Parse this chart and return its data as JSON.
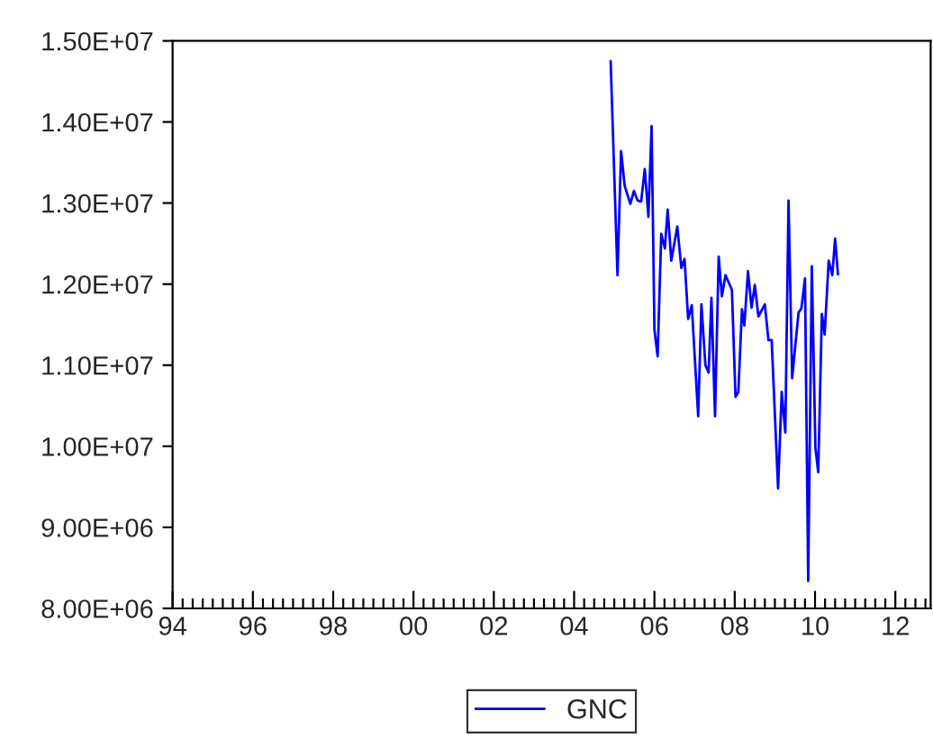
{
  "chart_data": {
    "type": "line",
    "x": [
      2004.91,
      2005.08,
      2005.17,
      2005.26,
      2005.4,
      2005.49,
      2005.58,
      2005.67,
      2005.76,
      2005.85,
      2005.93,
      2006.0,
      2006.08,
      2006.17,
      2006.26,
      2006.33,
      2006.42,
      2006.57,
      2006.67,
      2006.75,
      2006.84,
      2006.93,
      2007.09,
      2007.17,
      2007.27,
      2007.35,
      2007.42,
      2007.51,
      2007.6,
      2007.68,
      2007.77,
      2007.93,
      2008.02,
      2008.09,
      2008.18,
      2008.24,
      2008.33,
      2008.42,
      2008.5,
      2008.59,
      2008.75,
      2008.84,
      2008.92,
      2009.08,
      2009.17,
      2009.26,
      2009.34,
      2009.43,
      2009.59,
      2009.66,
      2009.75,
      2009.83,
      2009.92,
      2010.01,
      2010.08,
      2010.17,
      2010.24,
      2010.34,
      2010.43,
      2010.5,
      2010.57
    ],
    "series": [
      {
        "name": "GNC",
        "color": "#0000ff",
        "values": [
          14750000,
          12110000,
          13640000,
          13210000,
          12990000,
          13150000,
          13030000,
          13020000,
          13420000,
          12830000,
          13950000,
          11440000,
          11110000,
          12620000,
          12440000,
          12920000,
          12290000,
          12710000,
          12200000,
          12310000,
          11570000,
          11740000,
          10370000,
          11750000,
          11000000,
          10910000,
          11830000,
          10370000,
          12340000,
          11850000,
          12110000,
          11930000,
          10610000,
          10670000,
          11690000,
          11490000,
          12160000,
          11710000,
          11990000,
          11600000,
          11750000,
          11310000,
          11310000,
          9480000,
          10670000,
          10170000,
          13030000,
          10840000,
          11650000,
          11700000,
          12070000,
          8340000,
          12220000,
          9980000,
          9680000,
          11630000,
          11380000,
          12290000,
          12110000,
          12560000,
          12120000
        ]
      }
    ],
    "xlim": [
      1994,
      2012.88
    ],
    "xticks": [
      {
        "value": 1994,
        "label": "94"
      },
      {
        "value": 1994.25,
        "label": null
      },
      {
        "value": 1994.5,
        "label": null
      },
      {
        "value": 1994.75,
        "label": null
      },
      {
        "value": 1995,
        "label": null
      },
      {
        "value": 1995.25,
        "label": null
      },
      {
        "value": 1995.5,
        "label": null
      },
      {
        "value": 1995.75,
        "label": null
      },
      {
        "value": 1996,
        "label": "96"
      },
      {
        "value": 1996.25,
        "label": null
      },
      {
        "value": 1996.5,
        "label": null
      },
      {
        "value": 1996.75,
        "label": null
      },
      {
        "value": 1997,
        "label": null
      },
      {
        "value": 1997.25,
        "label": null
      },
      {
        "value": 1997.5,
        "label": null
      },
      {
        "value": 1997.75,
        "label": null
      },
      {
        "value": 1998,
        "label": "98"
      },
      {
        "value": 1998.25,
        "label": null
      },
      {
        "value": 1998.5,
        "label": null
      },
      {
        "value": 1998.75,
        "label": null
      },
      {
        "value": 1999,
        "label": null
      },
      {
        "value": 1999.25,
        "label": null
      },
      {
        "value": 1999.5,
        "label": null
      },
      {
        "value": 1999.75,
        "label": null
      },
      {
        "value": 2000,
        "label": "00"
      },
      {
        "value": 2000.25,
        "label": null
      },
      {
        "value": 2000.5,
        "label": null
      },
      {
        "value": 2000.75,
        "label": null
      },
      {
        "value": 2001,
        "label": null
      },
      {
        "value": 2001.25,
        "label": null
      },
      {
        "value": 2001.5,
        "label": null
      },
      {
        "value": 2001.75,
        "label": null
      },
      {
        "value": 2002,
        "label": "02"
      },
      {
        "value": 2002.25,
        "label": null
      },
      {
        "value": 2002.5,
        "label": null
      },
      {
        "value": 2002.75,
        "label": null
      },
      {
        "value": 2003,
        "label": null
      },
      {
        "value": 2003.25,
        "label": null
      },
      {
        "value": 2003.5,
        "label": null
      },
      {
        "value": 2003.75,
        "label": null
      },
      {
        "value": 2004,
        "label": "04"
      },
      {
        "value": 2004.25,
        "label": null
      },
      {
        "value": 2004.5,
        "label": null
      },
      {
        "value": 2004.75,
        "label": null
      },
      {
        "value": 2005,
        "label": null
      },
      {
        "value": 2005.25,
        "label": null
      },
      {
        "value": 2005.5,
        "label": null
      },
      {
        "value": 2005.75,
        "label": null
      },
      {
        "value": 2006,
        "label": "06"
      },
      {
        "value": 2006.25,
        "label": null
      },
      {
        "value": 2006.5,
        "label": null
      },
      {
        "value": 2006.75,
        "label": null
      },
      {
        "value": 2007,
        "label": null
      },
      {
        "value": 2007.25,
        "label": null
      },
      {
        "value": 2007.5,
        "label": null
      },
      {
        "value": 2007.75,
        "label": null
      },
      {
        "value": 2008,
        "label": "08"
      },
      {
        "value": 2008.25,
        "label": null
      },
      {
        "value": 2008.5,
        "label": null
      },
      {
        "value": 2008.75,
        "label": null
      },
      {
        "value": 2009,
        "label": null
      },
      {
        "value": 2009.25,
        "label": null
      },
      {
        "value": 2009.5,
        "label": null
      },
      {
        "value": 2009.75,
        "label": null
      },
      {
        "value": 2010,
        "label": "10"
      },
      {
        "value": 2010.25,
        "label": null
      },
      {
        "value": 2010.5,
        "label": null
      },
      {
        "value": 2010.75,
        "label": null
      },
      {
        "value": 2011,
        "label": null
      },
      {
        "value": 2011.25,
        "label": null
      },
      {
        "value": 2011.5,
        "label": null
      },
      {
        "value": 2011.75,
        "label": null
      },
      {
        "value": 2012,
        "label": "12"
      },
      {
        "value": 2012.25,
        "label": null
      },
      {
        "value": 2012.5,
        "label": null
      },
      {
        "value": 2012.75,
        "label": null
      }
    ],
    "ylim": [
      8000000,
      15000000
    ],
    "yticks": [
      {
        "value": 8000000,
        "label": "8.00E+06"
      },
      {
        "value": 9000000,
        "label": "9.00E+06"
      },
      {
        "value": 10000000,
        "label": "1.00E+07"
      },
      {
        "value": 11000000,
        "label": "1.10E+07"
      },
      {
        "value": 12000000,
        "label": "1.20E+07"
      },
      {
        "value": 13000000,
        "label": "1.30E+07"
      },
      {
        "value": 14000000,
        "label": "1.40E+07"
      },
      {
        "value": 15000000,
        "label": "1.50E+07"
      }
    ],
    "legend": "bottom",
    "grid": false,
    "marker": "none",
    "line_style": "solid"
  }
}
